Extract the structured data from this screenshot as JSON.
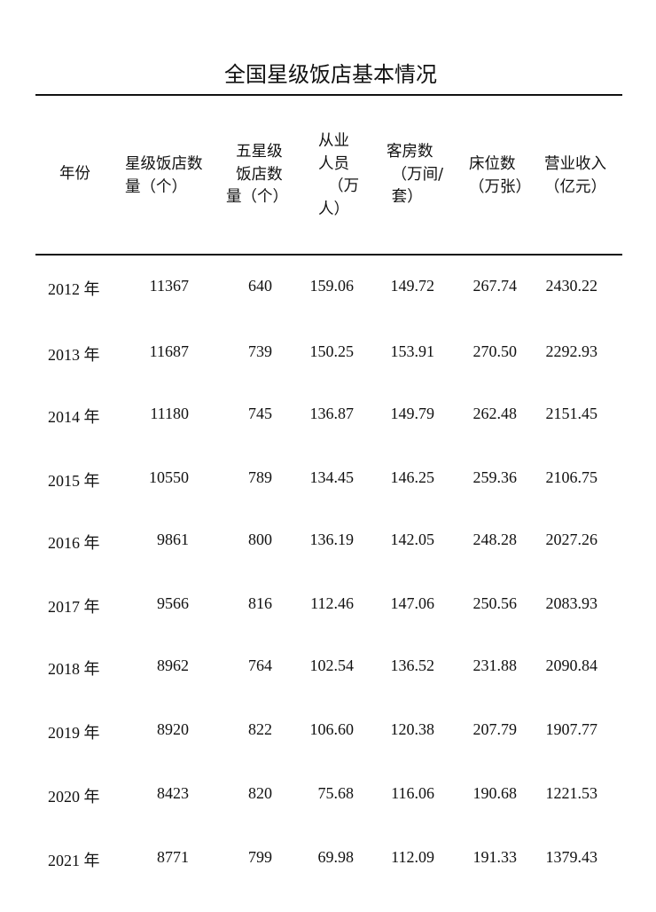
{
  "title": "全国星级饭店基本情况",
  "headers": [
    "年份",
    "星级饭店数\n量（个）",
    "  五星级\n  饭店数\n量（个）",
    "从业\n人员\n  （万\n人）",
    "客房数\n （万间/\n 套）",
    "床位数\n（万张）",
    "营业收入\n（亿元）"
  ],
  "rows": [
    {
      "year": "2012 年",
      "hotels": "11367",
      "five_star": "640",
      "employees": "159.06",
      "rooms": "149.72",
      "beds": "267.74",
      "revenue": "2430.22"
    },
    {
      "year": "2013 年",
      "hotels": "11687",
      "five_star": "739",
      "employees": "150.25",
      "rooms": "153.91",
      "beds": "270.50",
      "revenue": "2292.93"
    },
    {
      "year": "2014 年",
      "hotels": "11180",
      "five_star": "745",
      "employees": "136.87",
      "rooms": "149.79",
      "beds": "262.48",
      "revenue": "2151.45"
    },
    {
      "year": "2015 年",
      "hotels": "10550",
      "five_star": "789",
      "employees": "134.45",
      "rooms": "146.25",
      "beds": "259.36",
      "revenue": "2106.75"
    },
    {
      "year": "2016 年",
      "hotels": "9861",
      "five_star": "800",
      "employees": "136.19",
      "rooms": "142.05",
      "beds": "248.28",
      "revenue": "2027.26"
    },
    {
      "year": "2017 年",
      "hotels": "9566",
      "five_star": "816",
      "employees": "112.46",
      "rooms": "147.06",
      "beds": "250.56",
      "revenue": "2083.93"
    },
    {
      "year": "2018 年",
      "hotels": "8962",
      "five_star": "764",
      "employees": "102.54",
      "rooms": "136.52",
      "beds": "231.88",
      "revenue": "2090.84"
    },
    {
      "year": "2019 年",
      "hotels": "8920",
      "five_star": "822",
      "employees": "106.60",
      "rooms": "120.38",
      "beds": "207.79",
      "revenue": "1907.77"
    },
    {
      "year": "2020 年",
      "hotels": "8423",
      "five_star": "820",
      "employees": "75.68",
      "rooms": "116.06",
      "beds": "190.68",
      "revenue": "1221.53"
    },
    {
      "year": "2021 年",
      "hotels": "8771",
      "five_star": "799",
      "employees": "69.98",
      "rooms": "112.09",
      "beds": "191.33",
      "revenue": "1379.43"
    }
  ]
}
